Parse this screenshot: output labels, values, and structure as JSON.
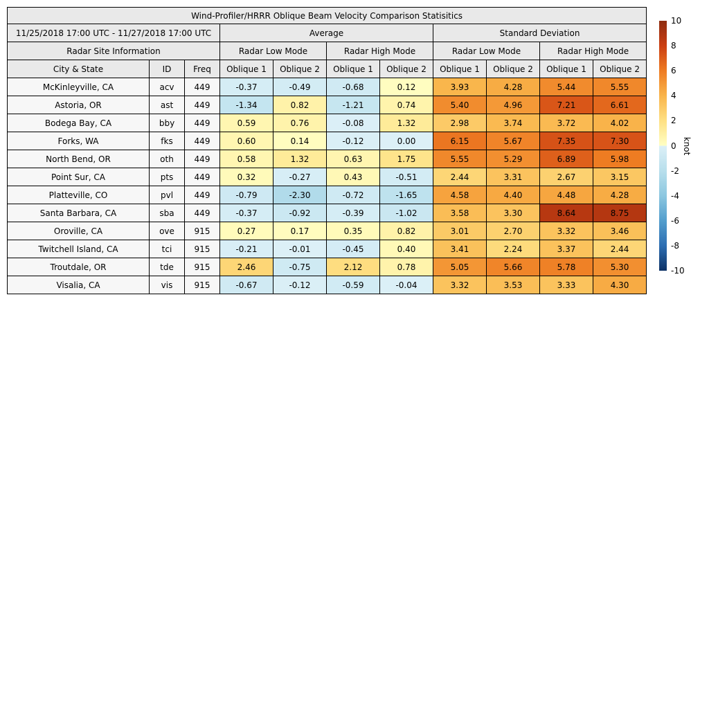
{
  "chart_data": {
    "type": "table",
    "title": "Wind-Profiler/HRRR Oblique Beam Velocity Comparison Statisitics",
    "date_range": "11/25/2018 17:00 UTC - 11/27/2018 17:00 UTC",
    "group_headers": {
      "average": "Average",
      "std": "Standard Deviation"
    },
    "site_info_header": "Radar Site Information",
    "mode_headers": [
      "Radar Low Mode",
      "Radar High Mode",
      "Radar Low Mode",
      "Radar High Mode"
    ],
    "columns": [
      "City & State",
      "ID",
      "Freq",
      "Oblique 1",
      "Oblique 2",
      "Oblique 1",
      "Oblique 2",
      "Oblique 1",
      "Oblique 2",
      "Oblique 1",
      "Oblique 2"
    ],
    "rows": [
      {
        "city": "McKinleyville, CA",
        "id": "acv",
        "freq": "449",
        "values": [
          -0.37,
          -0.49,
          -0.68,
          0.12,
          3.93,
          4.28,
          5.44,
          5.55
        ]
      },
      {
        "city": "Astoria, OR",
        "id": "ast",
        "freq": "449",
        "values": [
          -1.34,
          0.82,
          -1.21,
          0.74,
          5.4,
          4.96,
          7.21,
          6.61
        ]
      },
      {
        "city": "Bodega Bay, CA",
        "id": "bby",
        "freq": "449",
        "values": [
          0.59,
          0.76,
          -0.08,
          1.32,
          2.98,
          3.74,
          3.72,
          4.02
        ]
      },
      {
        "city": "Forks, WA",
        "id": "fks",
        "freq": "449",
        "values": [
          0.6,
          0.14,
          -0.12,
          0.0,
          6.15,
          5.67,
          7.35,
          7.3
        ]
      },
      {
        "city": "North Bend, OR",
        "id": "oth",
        "freq": "449",
        "values": [
          0.58,
          1.32,
          0.63,
          1.75,
          5.55,
          5.29,
          6.89,
          5.98
        ]
      },
      {
        "city": "Point Sur, CA",
        "id": "pts",
        "freq": "449",
        "values": [
          0.32,
          -0.27,
          0.43,
          -0.51,
          2.44,
          3.31,
          2.67,
          3.15
        ]
      },
      {
        "city": "Platteville, CO",
        "id": "pvl",
        "freq": "449",
        "values": [
          -0.79,
          -2.3,
          -0.72,
          -1.65,
          4.58,
          4.4,
          4.48,
          4.28
        ]
      },
      {
        "city": "Santa Barbara, CA",
        "id": "sba",
        "freq": "449",
        "values": [
          -0.37,
          -0.92,
          -0.39,
          -1.02,
          3.58,
          3.3,
          8.64,
          8.75
        ]
      },
      {
        "city": "Oroville, CA",
        "id": "ove",
        "freq": "915",
        "values": [
          0.27,
          0.17,
          0.35,
          0.82,
          3.01,
          2.7,
          3.32,
          3.46
        ]
      },
      {
        "city": "Twitchell Island, CA",
        "id": "tci",
        "freq": "915",
        "values": [
          -0.21,
          -0.01,
          -0.45,
          0.4,
          3.41,
          2.24,
          3.37,
          2.44
        ]
      },
      {
        "city": "Troutdale, OR",
        "id": "tde",
        "freq": "915",
        "values": [
          2.46,
          -0.75,
          2.12,
          0.78,
          5.05,
          5.66,
          5.78,
          5.3
        ]
      },
      {
        "city": "Visalia, CA",
        "id": "vis",
        "freq": "915",
        "values": [
          -0.67,
          -0.12,
          -0.59,
          -0.04,
          3.32,
          3.53,
          3.33,
          4.3
        ]
      }
    ],
    "colorbar": {
      "label": "knot",
      "vmin": -10,
      "vmax": 10,
      "ticks": [
        10,
        8,
        6,
        4,
        2,
        0,
        -2,
        -4,
        -6,
        -8,
        -10
      ],
      "warm_stops": [
        [
          0,
          "#ffffc4"
        ],
        [
          2,
          "#fee083"
        ],
        [
          4,
          "#f9b44a"
        ],
        [
          6,
          "#ee7b22"
        ],
        [
          8,
          "#cb3e12"
        ],
        [
          10,
          "#8e2c10"
        ]
      ],
      "cool_stops": [
        [
          0,
          "#dcf0f7"
        ],
        [
          2,
          "#b8dfec"
        ],
        [
          4,
          "#8cc7e0"
        ],
        [
          6,
          "#539ecd"
        ],
        [
          8,
          "#2d6eb2"
        ],
        [
          10,
          "#0e3266"
        ]
      ]
    },
    "styles": {
      "header_bg": "#e9e9e9",
      "row_label_bg": "#f7f7f7",
      "border": "#000000"
    }
  }
}
